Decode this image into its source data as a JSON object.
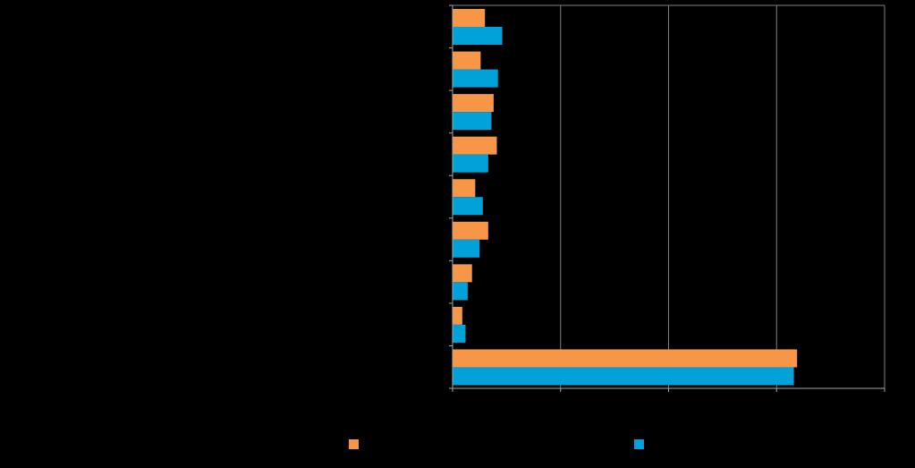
{
  "chart_data": {
    "type": "bar",
    "orientation": "horizontal",
    "categories": [
      "",
      "",
      "",
      "",
      "",
      "",
      "",
      "",
      ""
    ],
    "series": [
      {
        "name": "",
        "color": "#f79646",
        "values": [
          3.0,
          2.6,
          3.8,
          4.1,
          2.1,
          3.3,
          1.8,
          0.9,
          31.9
        ]
      },
      {
        "name": "",
        "color": "#00a2d9",
        "values": [
          4.6,
          4.2,
          3.6,
          3.3,
          2.8,
          2.5,
          1.4,
          1.2,
          31.6
        ]
      }
    ],
    "xlim": [
      0,
      40
    ],
    "grid": true,
    "legend": "bottom",
    "gridline_color": "#7f7f7f",
    "axis_color": "#a6a6a6"
  }
}
